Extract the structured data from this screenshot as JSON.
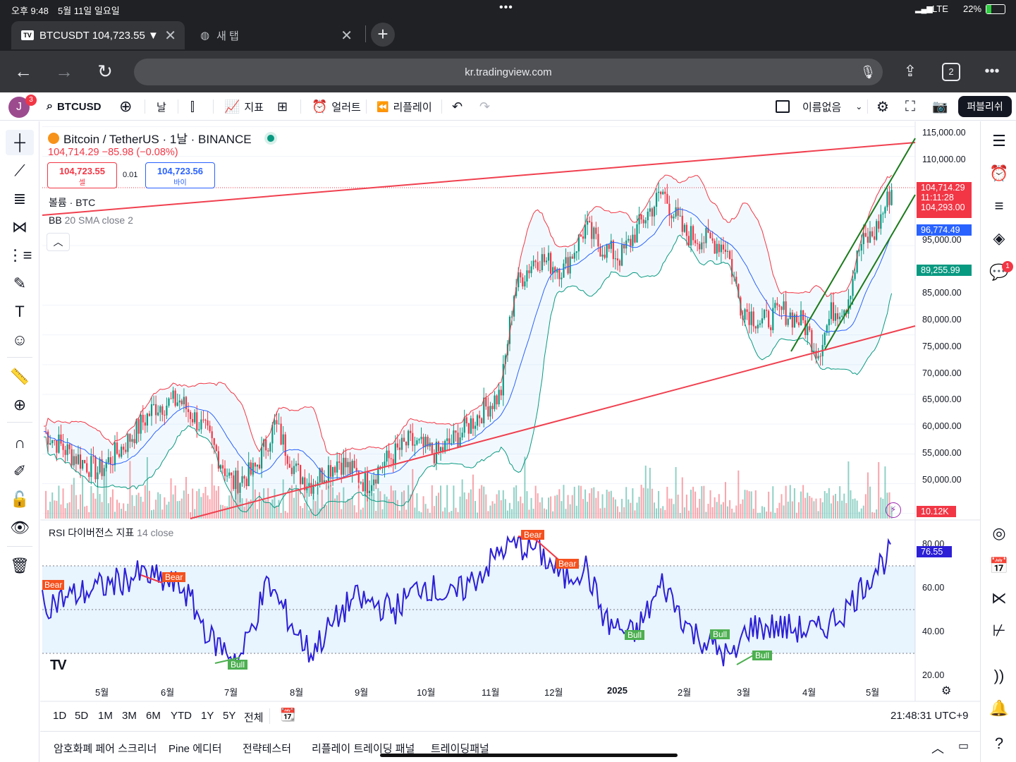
{
  "status": {
    "time": "오후 9:48",
    "date": "5월 11일 일요일",
    "network": "LTE",
    "battery": "22%"
  },
  "browser": {
    "tabs": [
      {
        "label": "BTCUSDT 104,723.55 ▼"
      },
      {
        "label": "새 탭"
      }
    ],
    "url": "kr.tradingview.com",
    "tab_count": "2"
  },
  "toolbar": {
    "avatar": "J",
    "avatar_badge": "3",
    "symbol": "BTCUSD",
    "interval": "날",
    "indicators": "지표",
    "alert": "얼러트",
    "replay": "리플레이",
    "layout_name": "이름없음",
    "publish": "퍼블리쉬"
  },
  "legend": {
    "title": "Bitcoin / TetherUS · 1날 · BINANCE",
    "price_line": "104,714.29 −85.98 (−0.08%)",
    "sell_price": "104,723.55",
    "sell_label": "셀",
    "spread": "0.01",
    "buy_price": "104,723.56",
    "buy_label": "바이",
    "volume": "볼륨 · BTC",
    "bb_name": "BB",
    "bb_params": "20 SMA close 2"
  },
  "rsi": {
    "name": "RSI 다이버전스 지표",
    "params": "14 close",
    "value": "76.55"
  },
  "price_axis": [
    "115,000.00",
    "110,000.00",
    "95,000.00",
    "85,000.00",
    "80,000.00",
    "75,000.00",
    "70,000.00",
    "65,000.00",
    "60,000.00",
    "55,000.00",
    "50,000.00"
  ],
  "price_tags": {
    "last": "104,714.29",
    "countdown": "11:11:28",
    "high": "104,293.00",
    "bb_basis": "96,774.49",
    "bb_lower": "89,255.99",
    "volume": "10.12K"
  },
  "rsi_axis": [
    "80.00",
    "60.00",
    "40.00",
    "20.00"
  ],
  "time_axis": [
    "5월",
    "6월",
    "7월",
    "8월",
    "9월",
    "10월",
    "11월",
    "12월",
    "2025",
    "2월",
    "3월",
    "4월",
    "5월"
  ],
  "signals": {
    "bear": [
      "Bear",
      "Bear",
      "Bear",
      "Bear"
    ],
    "bull": [
      "Bull",
      "Bull",
      "Bull",
      "Bull"
    ]
  },
  "ranges": [
    "1D",
    "5D",
    "1M",
    "3M",
    "6M",
    "YTD",
    "1Y",
    "5Y",
    "전체"
  ],
  "clock": "21:48:31 UTC+9",
  "panels": [
    "암호화폐 페어 스크리너",
    "Pine 에디터",
    "전략테스터",
    "리플레이 트레이딩 패널",
    "트레이딩패널"
  ],
  "alerts_badge": "1",
  "colors": {
    "up": "#089981",
    "down": "#f23645",
    "bb_upper": "#f23645",
    "bb_basis": "#2962ff",
    "bb_lower": "#089981",
    "rsi": "#2c1fd6",
    "trend": "#f0404f",
    "channel": "#1b7a1b"
  }
}
